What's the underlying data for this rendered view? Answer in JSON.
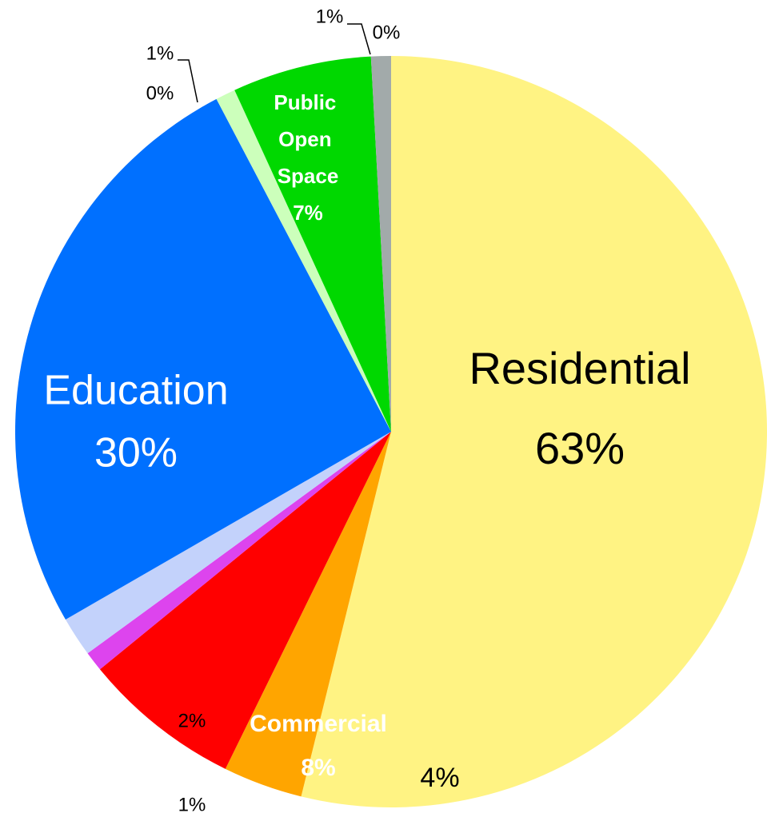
{
  "chart_data": {
    "type": "pie",
    "categories": [
      "Residential",
      null,
      "Commercial",
      null,
      null,
      "Education",
      null,
      null,
      "Public Open Space",
      null,
      null
    ],
    "values": [
      63,
      4,
      8,
      1,
      2,
      30,
      0,
      1,
      7,
      1,
      0
    ],
    "value_labels": [
      "63%",
      "4%",
      "8%",
      "1%",
      "2%",
      "30%",
      "0%",
      "1%",
      "7%",
      "1%",
      "0%"
    ],
    "colors": [
      "#fff383",
      "#ffa500",
      "#ff0000",
      "#dd44ee",
      "#c3d2fb",
      "#0070ff",
      "#00c8f0",
      "#ccffbb",
      "#00d800",
      "#a2aaaa",
      "#d4a060"
    ]
  }
}
